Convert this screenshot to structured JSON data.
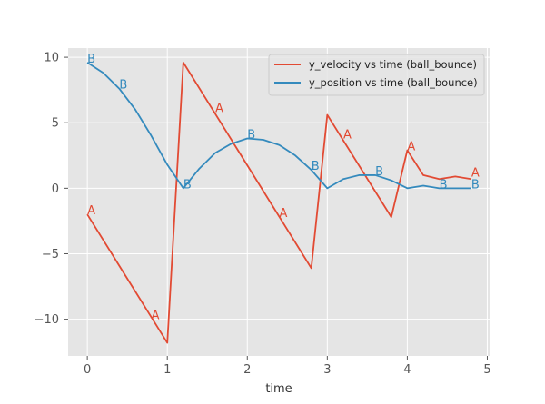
{
  "chart_data": {
    "type": "line",
    "title": "",
    "xlabel": "time",
    "ylabel": "",
    "xlim": [
      -0.24,
      5.04
    ],
    "ylim": [
      -12.8,
      10.7
    ],
    "x_ticks": [
      0,
      1,
      2,
      3,
      4,
      5
    ],
    "x_tick_labels": [
      "0",
      "1",
      "2",
      "3",
      "4",
      "5"
    ],
    "y_ticks": [
      -10,
      -5,
      0,
      5,
      10
    ],
    "y_tick_labels": [
      "−10",
      "−5",
      "0",
      "5",
      "10"
    ],
    "grid": true,
    "legend_position": "top-right",
    "series": [
      {
        "name": "y_velocity vs time (ball_bounce)",
        "color": "#E24A33",
        "x": [
          0,
          1.0,
          1.2,
          2.8,
          3.0,
          3.8,
          4.0,
          4.2,
          4.4,
          4.6,
          4.8
        ],
        "y": [
          -2.0,
          -11.8,
          9.6,
          -6.1,
          5.6,
          -2.2,
          2.9,
          1.0,
          0.7,
          0.9,
          0.7
        ]
      },
      {
        "name": "y_position vs time (ball_bounce)",
        "color": "#348ABD",
        "x": [
          0,
          0.2,
          0.4,
          0.6,
          0.8,
          1.0,
          1.2,
          1.4,
          1.6,
          1.8,
          2.0,
          2.2,
          2.4,
          2.6,
          2.8,
          3.0,
          3.2,
          3.4,
          3.6,
          3.8,
          4.0,
          4.2,
          4.4,
          4.6,
          4.8
        ],
        "y": [
          9.6,
          8.8,
          7.6,
          6.0,
          4.0,
          1.8,
          0.0,
          1.5,
          2.7,
          3.4,
          3.8,
          3.7,
          3.3,
          2.5,
          1.4,
          0.0,
          0.7,
          1.0,
          1.0,
          0.6,
          0.0,
          0.2,
          0.0,
          0.0,
          0.0
        ]
      }
    ],
    "annotations": [
      {
        "text": "A",
        "x": 0.0,
        "y": -2.0,
        "color": "#E24A33"
      },
      {
        "text": "A",
        "x": 0.8,
        "y": -10.0,
        "color": "#E24A33"
      },
      {
        "text": "A",
        "x": 1.6,
        "y": 5.8,
        "color": "#E24A33"
      },
      {
        "text": "A",
        "x": 2.4,
        "y": -2.2,
        "color": "#E24A33"
      },
      {
        "text": "A",
        "x": 3.2,
        "y": 3.8,
        "color": "#E24A33"
      },
      {
        "text": "A",
        "x": 4.0,
        "y": 2.9,
        "color": "#E24A33"
      },
      {
        "text": "A",
        "x": 4.8,
        "y": 0.9,
        "color": "#E24A33"
      },
      {
        "text": "B",
        "x": 0.0,
        "y": 9.6,
        "color": "#348ABD"
      },
      {
        "text": "B",
        "x": 0.4,
        "y": 7.6,
        "color": "#348ABD"
      },
      {
        "text": "B",
        "x": 1.2,
        "y": 0.0,
        "color": "#348ABD"
      },
      {
        "text": "B",
        "x": 2.0,
        "y": 3.8,
        "color": "#348ABD"
      },
      {
        "text": "B",
        "x": 2.8,
        "y": 1.4,
        "color": "#348ABD"
      },
      {
        "text": "B",
        "x": 3.6,
        "y": 1.0,
        "color": "#348ABD"
      },
      {
        "text": "B",
        "x": 4.4,
        "y": 0.0,
        "color": "#348ABD"
      },
      {
        "text": "B",
        "x": 4.8,
        "y": 0.0,
        "color": "#348ABD"
      }
    ]
  }
}
